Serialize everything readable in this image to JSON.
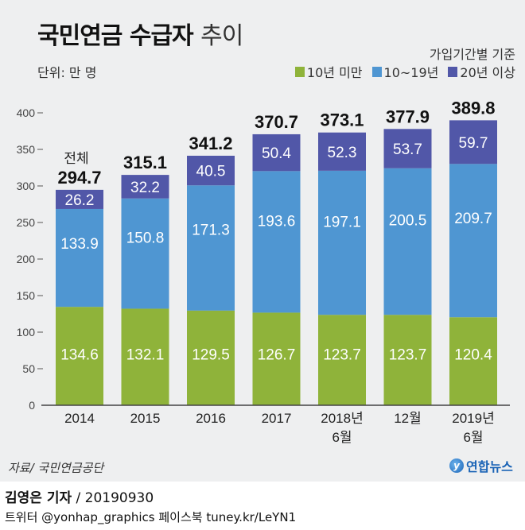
{
  "header": {
    "title_bold": "국민연금 수급자",
    "title_light": "추이",
    "basis_note": "가입기간별 기준",
    "unit": "단위: 만 명"
  },
  "legend": [
    {
      "label": "10년 미만",
      "color": "#8fb33a"
    },
    {
      "label": "10~19년",
      "color": "#4f96d2"
    },
    {
      "label": "20년 이상",
      "color": "#5157a8"
    }
  ],
  "footer": {
    "source": "자료/ 국민연금공단",
    "logo_text": "연합뉴스",
    "reporter": "김영은 기자",
    "date": "/ 20190930",
    "social": "트위터 @yonhap_graphics  페이스북 tuney.kr/LeYN1"
  },
  "chart_data": {
    "type": "bar",
    "stacked": true,
    "title": "국민연금 수급자 추이",
    "xlabel": "",
    "ylabel": "단위: 만 명",
    "ylim": [
      0,
      400
    ],
    "yticks": [
      0,
      50,
      100,
      150,
      200,
      250,
      300,
      350,
      400
    ],
    "grid": false,
    "legend_position": "top-right",
    "categories": [
      [
        "2014"
      ],
      [
        "2015"
      ],
      [
        "2016"
      ],
      [
        "2017"
      ],
      [
        "2018년",
        "6월"
      ],
      [
        "12월"
      ],
      [
        "2019년",
        "6월"
      ]
    ],
    "series": [
      {
        "name": "10년 미만",
        "color": "#8fb33a",
        "values": [
          134.6,
          132.1,
          129.5,
          126.7,
          123.7,
          123.7,
          120.4
        ]
      },
      {
        "name": "10~19년",
        "color": "#4f96d2",
        "values": [
          133.9,
          150.8,
          171.3,
          193.6,
          197.1,
          200.5,
          209.7
        ]
      },
      {
        "name": "20년 이상",
        "color": "#5157a8",
        "values": [
          26.2,
          32.2,
          40.5,
          50.4,
          52.3,
          53.7,
          59.7
        ]
      }
    ],
    "totals": [
      294.7,
      315.1,
      341.2,
      370.7,
      373.1,
      377.9,
      389.8
    ],
    "total_label_prefix": "전체",
    "value_labels": [
      [
        "134.6",
        "132.1",
        "129.5",
        "126.7",
        "123.7",
        "123.7",
        "120.4"
      ],
      [
        "133.9",
        "150.8",
        "171.3",
        "193.6",
        "197.1",
        "200.5",
        "209.7"
      ],
      [
        "26.2",
        "32.2",
        "40.5",
        "50.4",
        "52.3",
        "53.7",
        "59.7"
      ]
    ],
    "total_labels": [
      "294.7",
      "315.1",
      "341.2",
      "370.7",
      "373.1",
      "377.9",
      "389.8"
    ]
  }
}
